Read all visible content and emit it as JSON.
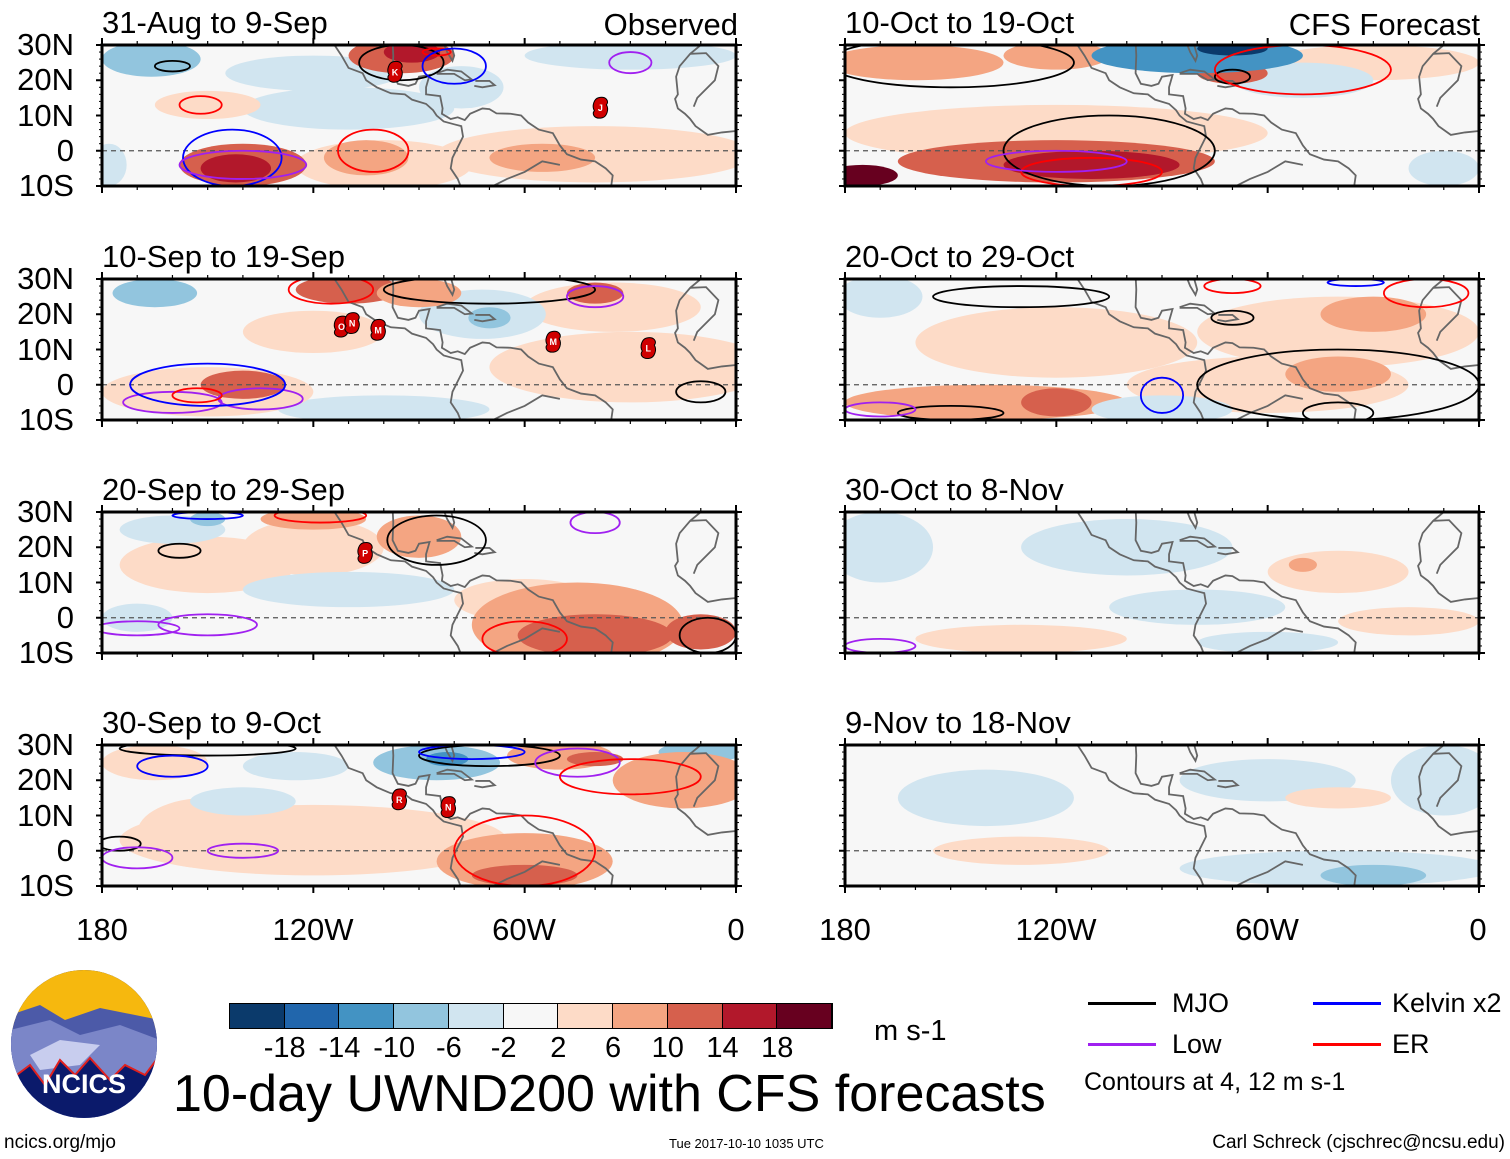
{
  "figure_title": "10-day UWND200 with CFS forecasts",
  "observed_label": "Observed",
  "forecast_label": "CFS Forecast",
  "lat_labels": [
    "30N",
    "20N",
    "10N",
    "0",
    "10S"
  ],
  "lon_labels": [
    "180",
    "120W",
    "60W",
    "0"
  ],
  "colorbar": {
    "unit": "m s-1",
    "labels": [
      "-18",
      "-14",
      "-10",
      "-6",
      "-2",
      "2",
      "6",
      "10",
      "14",
      "18"
    ],
    "colors": [
      "#0b3a6b",
      "#2166ac",
      "#4393c3",
      "#92c5de",
      "#d1e5f0",
      "#f7f7f7",
      "#fddbc7",
      "#f4a582",
      "#d6604d",
      "#b2182b",
      "#67001f"
    ]
  },
  "legend": {
    "items": [
      {
        "label": "MJO",
        "color": "#000000"
      },
      {
        "label": "Kelvin x2",
        "color": "#0000ff"
      },
      {
        "label": "Low",
        "color": "#a020f0"
      },
      {
        "label": "ER",
        "color": "#ff0000"
      }
    ],
    "note": "Contours at 4, 12 m s-1"
  },
  "footer": {
    "url": "ncics.org/mjo",
    "timestamp": "Tue 2017-10-10 1035 UTC",
    "author": "Carl Schreck (cjschrec@ncsu.edu)"
  },
  "logo_text": "NCICS",
  "chart_data": {
    "type": "heatmap",
    "variable": "200-hPa zonal wind anomaly (m s-1)",
    "lon_range": [
      -180,
      0
    ],
    "lat_range": [
      -10,
      30
    ],
    "panels": [
      {
        "title": "31-Aug to 9-Sep",
        "kind": "observed",
        "patches": [
          [
            -166,
            26,
            14,
            5,
            -8
          ],
          [
            -120,
            22,
            25,
            5,
            -4
          ],
          [
            -110,
            12,
            30,
            6,
            -4
          ],
          [
            -78,
            18,
            12,
            6,
            -4
          ],
          [
            -30,
            27,
            30,
            4,
            -6
          ],
          [
            -178,
            -4,
            5,
            6,
            -4
          ],
          [
            -150,
            13,
            15,
            4,
            3
          ],
          [
            -40,
            -1,
            45,
            8,
            4
          ],
          [
            -55,
            -2,
            15,
            4,
            8
          ],
          [
            -100,
            -4,
            25,
            7,
            4
          ],
          [
            -105,
            -2,
            12,
            5,
            8
          ],
          [
            -140,
            -4,
            18,
            6,
            10
          ],
          [
            -142,
            -5,
            10,
            4,
            16
          ],
          [
            -95,
            27,
            15,
            5,
            12
          ],
          [
            -92,
            28,
            8,
            3,
            16
          ]
        ],
        "contours": [
          [
            "mjo",
            -160,
            24,
            5,
            1.5
          ],
          [
            "mjo",
            -95,
            25,
            12,
            5
          ],
          [
            "er",
            -152,
            13,
            6,
            2.5
          ],
          [
            "er",
            -103,
            0,
            10,
            6
          ],
          [
            "er",
            -85,
            28,
            4,
            1
          ],
          [
            "kelvin",
            -143,
            -2,
            14,
            8
          ],
          [
            "kelvin",
            -80,
            24,
            9,
            5
          ],
          [
            "low",
            -140,
            -4,
            18,
            4
          ],
          [
            "low",
            -30,
            25,
            6,
            3
          ]
        ],
        "storms": [
          [
            "K",
            -96.8,
            22.4
          ],
          [
            "J",
            -38.5,
            12.2
          ]
        ]
      },
      {
        "title": "10-Sep to 19-Sep",
        "kind": "observed",
        "patches": [
          [
            -120,
            15,
            20,
            6,
            3
          ],
          [
            -30,
            5,
            40,
            10,
            4
          ],
          [
            -35,
            22,
            25,
            7,
            4
          ],
          [
            -100,
            -7,
            30,
            4,
            -4
          ],
          [
            -150,
            -2,
            30,
            7,
            4
          ],
          [
            -140,
            0,
            12,
            4,
            10
          ],
          [
            -165,
            26,
            12,
            4,
            -10
          ],
          [
            -72,
            20,
            18,
            7,
            -6
          ],
          [
            -70,
            19,
            6,
            3,
            -10
          ],
          [
            -110,
            27,
            15,
            4,
            10
          ],
          [
            -90,
            26,
            12,
            4,
            8
          ],
          [
            -40,
            26,
            8,
            3,
            10
          ]
        ],
        "contours": [
          [
            "mjo",
            -70,
            27,
            30,
            4
          ],
          [
            "mjo",
            -10,
            -2,
            7,
            3
          ],
          [
            "low",
            -40,
            25,
            8,
            3
          ],
          [
            "low",
            -160,
            -5,
            14,
            3
          ],
          [
            "low",
            -135,
            -4,
            12,
            3
          ],
          [
            "er",
            -115,
            27,
            12,
            4
          ],
          [
            "er",
            -153,
            -3,
            7,
            2
          ],
          [
            "kelvin",
            -150,
            0,
            22,
            6
          ]
        ],
        "storms": [
          [
            "O",
            -112,
            16.5
          ],
          [
            "N",
            -109,
            17.5
          ],
          [
            "M",
            -101.6,
            15.6
          ],
          [
            "M",
            -51.9,
            12.2
          ],
          [
            "L",
            -24.9,
            10.4
          ]
        ]
      },
      {
        "title": "20-Sep to 29-Sep",
        "kind": "observed",
        "patches": [
          [
            -150,
            15,
            25,
            8,
            4
          ],
          [
            -120,
            20,
            20,
            8,
            4
          ],
          [
            -160,
            25,
            15,
            4,
            -4
          ],
          [
            -150,
            28,
            5,
            2,
            -10
          ],
          [
            -120,
            28,
            15,
            3,
            6
          ],
          [
            -90,
            23,
            12,
            6,
            8
          ],
          [
            -110,
            8,
            30,
            5,
            -4
          ],
          [
            -170,
            0,
            10,
            4,
            -4
          ],
          [
            -60,
            5,
            20,
            6,
            4
          ],
          [
            -45,
            -2,
            30,
            12,
            8
          ],
          [
            -40,
            -5,
            22,
            6,
            12
          ],
          [
            -10,
            -4,
            10,
            5,
            12
          ]
        ],
        "contours": [
          [
            "mjo",
            -158,
            19,
            6,
            2
          ],
          [
            "mjo",
            -85,
            22,
            14,
            7
          ],
          [
            "mjo",
            -8,
            -5,
            8,
            5
          ],
          [
            "low",
            -40,
            27,
            7,
            3
          ],
          [
            "low",
            -150,
            -2,
            14,
            3
          ],
          [
            "low",
            -170,
            -3,
            12,
            2
          ],
          [
            "er",
            -118,
            29,
            13,
            2
          ],
          [
            "er",
            -60,
            -6,
            12,
            5
          ],
          [
            "kelvin",
            -150,
            29,
            10,
            1
          ]
        ],
        "storms": [
          [
            "P",
            -105.3,
            18.4
          ]
        ]
      },
      {
        "title": "30-Sep to 9-Oct",
        "kind": "observed",
        "patches": [
          [
            -120,
            3,
            55,
            10,
            4
          ],
          [
            -150,
            5,
            20,
            10,
            4
          ],
          [
            -165,
            25,
            15,
            5,
            4
          ],
          [
            -140,
            14,
            15,
            4,
            -4
          ],
          [
            -125,
            24,
            15,
            4,
            -6
          ],
          [
            -85,
            25,
            18,
            5,
            -10
          ],
          [
            -82,
            26,
            6,
            2,
            -14
          ],
          [
            -10,
            28,
            12,
            3,
            -10
          ],
          [
            -15,
            20,
            20,
            8,
            6
          ],
          [
            -50,
            27,
            15,
            4,
            8
          ],
          [
            -40,
            26,
            8,
            2,
            12
          ],
          [
            -60,
            -3,
            25,
            8,
            6
          ],
          [
            -60,
            -7,
            15,
            3,
            12
          ]
        ],
        "contours": [
          [
            "mjo",
            -150,
            29,
            25,
            2
          ],
          [
            "mjo",
            -70,
            27,
            20,
            3
          ],
          [
            "mjo",
            -175,
            2,
            6,
            2
          ],
          [
            "kelvin",
            -160,
            24,
            10,
            3
          ],
          [
            "kelvin",
            -75,
            28,
            15,
            2
          ],
          [
            "low",
            -140,
            0,
            10,
            2
          ],
          [
            "low",
            -170,
            -2,
            10,
            3
          ],
          [
            "low",
            -45,
            25,
            12,
            4
          ],
          [
            "er",
            -60,
            0,
            20,
            10
          ],
          [
            "er",
            -30,
            21,
            20,
            5
          ]
        ],
        "storms": [
          [
            "R",
            -95.6,
            14.6
          ],
          [
            "N",
            -81.7,
            12.4
          ]
        ]
      },
      {
        "title": "10-Oct to 19-Oct",
        "kind": "forecast",
        "patches": [
          [
            -120,
            5,
            60,
            8,
            4
          ],
          [
            -30,
            25,
            30,
            5,
            4
          ],
          [
            -50,
            20,
            20,
            5,
            -4
          ],
          [
            -160,
            25,
            25,
            5,
            8
          ],
          [
            -120,
            27,
            15,
            4,
            8
          ],
          [
            -70,
            22,
            10,
            3,
            10
          ],
          [
            -80,
            27,
            30,
            5,
            -14
          ],
          [
            -70,
            29,
            10,
            2,
            -20
          ],
          [
            -120,
            -3,
            45,
            6,
            10
          ],
          [
            -110,
            -4,
            25,
            4,
            14
          ],
          [
            -175,
            -7,
            10,
            3,
            18
          ],
          [
            -10,
            -5,
            10,
            5,
            -4
          ]
        ],
        "contours": [
          [
            "mjo",
            -105,
            0,
            30,
            10
          ],
          [
            "mjo",
            -150,
            25,
            35,
            7
          ],
          [
            "mjo",
            -70,
            21,
            5,
            2
          ],
          [
            "er",
            -50,
            23,
            25,
            7
          ],
          [
            "er",
            -110,
            -6,
            20,
            4
          ],
          [
            "low",
            -120,
            -3,
            20,
            3
          ]
        ],
        "storms": []
      },
      {
        "title": "20-Oct to 29-Oct",
        "kind": "forecast",
        "patches": [
          [
            -120,
            12,
            40,
            10,
            3
          ],
          [
            -40,
            15,
            40,
            10,
            4
          ],
          [
            -30,
            20,
            15,
            5,
            8
          ],
          [
            -170,
            25,
            12,
            6,
            -4
          ],
          [
            -60,
            0,
            40,
            8,
            4
          ],
          [
            -40,
            3,
            15,
            5,
            8
          ],
          [
            -140,
            -5,
            40,
            5,
            8
          ],
          [
            -120,
            -5,
            10,
            4,
            12
          ],
          [
            -90,
            -7,
            20,
            4,
            -4
          ]
        ],
        "contours": [
          [
            "mjo",
            -130,
            25,
            25,
            3
          ],
          [
            "mjo",
            -70,
            19,
            6,
            2
          ],
          [
            "mjo",
            -40,
            0,
            40,
            10
          ],
          [
            "mjo",
            -150,
            -8,
            15,
            2
          ],
          [
            "mjo",
            -40,
            -8,
            10,
            3
          ],
          [
            "kelvin",
            -90,
            -3,
            6,
            5
          ],
          [
            "kelvin",
            -35,
            29,
            8,
            1
          ],
          [
            "er",
            -15,
            26,
            12,
            4
          ],
          [
            "er",
            -70,
            28,
            8,
            2
          ],
          [
            "low",
            -170,
            -7,
            10,
            2
          ]
        ],
        "storms": []
      },
      {
        "title": "30-Oct to 8-Nov",
        "kind": "forecast",
        "patches": [
          [
            -170,
            20,
            15,
            10,
            -4
          ],
          [
            -100,
            20,
            30,
            8,
            -3
          ],
          [
            -80,
            3,
            25,
            5,
            -6
          ],
          [
            -40,
            13,
            20,
            6,
            3
          ],
          [
            -50,
            15,
            4,
            2,
            7
          ],
          [
            -130,
            -6,
            30,
            4,
            3
          ],
          [
            -20,
            -1,
            20,
            4,
            3
          ],
          [
            -60,
            -7,
            20,
            3,
            -4
          ]
        ],
        "contours": [
          [
            "low",
            -170,
            -8,
            10,
            2
          ]
        ],
        "storms": []
      },
      {
        "title": "9-Nov to 18-Nov",
        "kind": "forecast",
        "patches": [
          [
            -140,
            15,
            25,
            8,
            -4
          ],
          [
            -60,
            20,
            25,
            6,
            -4
          ],
          [
            -10,
            20,
            15,
            10,
            -4
          ],
          [
            -130,
            0,
            25,
            4,
            3
          ],
          [
            -40,
            15,
            15,
            3,
            3
          ],
          [
            -40,
            -5,
            45,
            5,
            -5
          ],
          [
            -30,
            -7,
            15,
            3,
            -8
          ]
        ],
        "contours": [],
        "storms": []
      }
    ]
  }
}
